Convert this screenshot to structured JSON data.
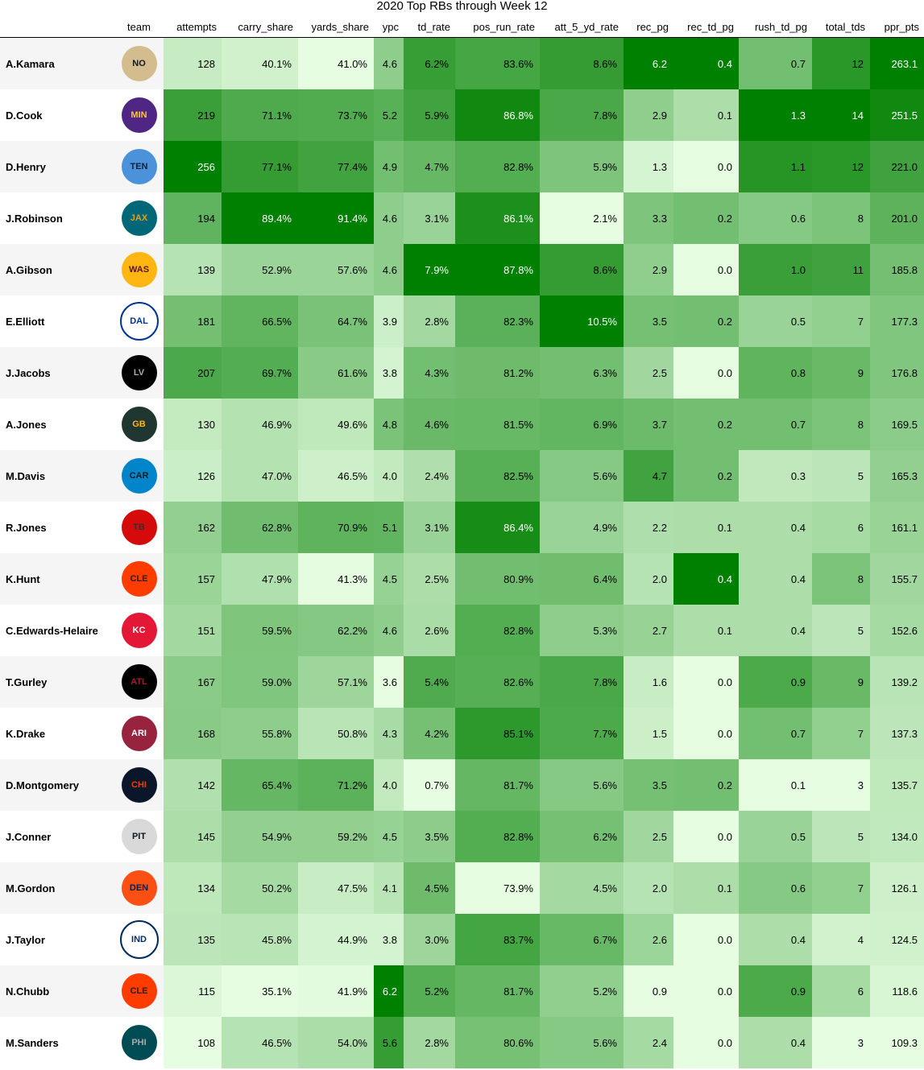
{
  "chart_data": {
    "type": "table",
    "title": "2020 Top RBs through Week 12",
    "columns": [
      "",
      "team",
      "attempts",
      "carry_share",
      "yards_share",
      "ypc",
      "td_rate",
      "pos_run_rate",
      "att_5_yd_rate",
      "rec_pg",
      "rec_td_pg",
      "rush_td_pg",
      "total_tds",
      "ppr_pts"
    ],
    "rows": [
      {
        "player": "A.Kamara",
        "team": "NO",
        "attempts": "128",
        "carry_share": "40.1%",
        "yards_share": "41.0%",
        "ypc": "4.6",
        "td_rate": "6.2%",
        "pos_run_rate": "83.6%",
        "att_5_yd_rate": "8.6%",
        "rec_pg": "6.2",
        "rec_td_pg": "0.4",
        "rush_td_pg": "0.7",
        "total_tds": "12",
        "ppr_pts": "263.1"
      },
      {
        "player": "D.Cook",
        "team": "MIN",
        "attempts": "219",
        "carry_share": "71.1%",
        "yards_share": "73.7%",
        "ypc": "5.2",
        "td_rate": "5.9%",
        "pos_run_rate": "86.8%",
        "att_5_yd_rate": "7.8%",
        "rec_pg": "2.9",
        "rec_td_pg": "0.1",
        "rush_td_pg": "1.3",
        "total_tds": "14",
        "ppr_pts": "251.5"
      },
      {
        "player": "D.Henry",
        "team": "TEN",
        "attempts": "256",
        "carry_share": "77.1%",
        "yards_share": "77.4%",
        "ypc": "4.9",
        "td_rate": "4.7%",
        "pos_run_rate": "82.8%",
        "att_5_yd_rate": "5.9%",
        "rec_pg": "1.3",
        "rec_td_pg": "0.0",
        "rush_td_pg": "1.1",
        "total_tds": "12",
        "ppr_pts": "221.0"
      },
      {
        "player": "J.Robinson",
        "team": "JAX",
        "attempts": "194",
        "carry_share": "89.4%",
        "yards_share": "91.4%",
        "ypc": "4.6",
        "td_rate": "3.1%",
        "pos_run_rate": "86.1%",
        "att_5_yd_rate": "2.1%",
        "rec_pg": "3.3",
        "rec_td_pg": "0.2",
        "rush_td_pg": "0.6",
        "total_tds": "8",
        "ppr_pts": "201.0"
      },
      {
        "player": "A.Gibson",
        "team": "WAS",
        "attempts": "139",
        "carry_share": "52.9%",
        "yards_share": "57.6%",
        "ypc": "4.6",
        "td_rate": "7.9%",
        "pos_run_rate": "87.8%",
        "att_5_yd_rate": "8.6%",
        "rec_pg": "2.9",
        "rec_td_pg": "0.0",
        "rush_td_pg": "1.0",
        "total_tds": "11",
        "ppr_pts": "185.8"
      },
      {
        "player": "E.Elliott",
        "team": "DAL",
        "attempts": "181",
        "carry_share": "66.5%",
        "yards_share": "64.7%",
        "ypc": "3.9",
        "td_rate": "2.8%",
        "pos_run_rate": "82.3%",
        "att_5_yd_rate": "10.5%",
        "rec_pg": "3.5",
        "rec_td_pg": "0.2",
        "rush_td_pg": "0.5",
        "total_tds": "7",
        "ppr_pts": "177.3"
      },
      {
        "player": "J.Jacobs",
        "team": "LV",
        "attempts": "207",
        "carry_share": "69.7%",
        "yards_share": "61.6%",
        "ypc": "3.8",
        "td_rate": "4.3%",
        "pos_run_rate": "81.2%",
        "att_5_yd_rate": "6.3%",
        "rec_pg": "2.5",
        "rec_td_pg": "0.0",
        "rush_td_pg": "0.8",
        "total_tds": "9",
        "ppr_pts": "176.8"
      },
      {
        "player": "A.Jones",
        "team": "GB",
        "attempts": "130",
        "carry_share": "46.9%",
        "yards_share": "49.6%",
        "ypc": "4.8",
        "td_rate": "4.6%",
        "pos_run_rate": "81.5%",
        "att_5_yd_rate": "6.9%",
        "rec_pg": "3.7",
        "rec_td_pg": "0.2",
        "rush_td_pg": "0.7",
        "total_tds": "8",
        "ppr_pts": "169.5"
      },
      {
        "player": "M.Davis",
        "team": "CAR",
        "attempts": "126",
        "carry_share": "47.0%",
        "yards_share": "46.5%",
        "ypc": "4.0",
        "td_rate": "2.4%",
        "pos_run_rate": "82.5%",
        "att_5_yd_rate": "5.6%",
        "rec_pg": "4.7",
        "rec_td_pg": "0.2",
        "rush_td_pg": "0.3",
        "total_tds": "5",
        "ppr_pts": "165.3"
      },
      {
        "player": "R.Jones",
        "team": "TB",
        "attempts": "162",
        "carry_share": "62.8%",
        "yards_share": "70.9%",
        "ypc": "5.1",
        "td_rate": "3.1%",
        "pos_run_rate": "86.4%",
        "att_5_yd_rate": "4.9%",
        "rec_pg": "2.2",
        "rec_td_pg": "0.1",
        "rush_td_pg": "0.4",
        "total_tds": "6",
        "ppr_pts": "161.1"
      },
      {
        "player": "K.Hunt",
        "team": "CLE",
        "attempts": "157",
        "carry_share": "47.9%",
        "yards_share": "41.3%",
        "ypc": "4.5",
        "td_rate": "2.5%",
        "pos_run_rate": "80.9%",
        "att_5_yd_rate": "6.4%",
        "rec_pg": "2.0",
        "rec_td_pg": "0.4",
        "rush_td_pg": "0.4",
        "total_tds": "8",
        "ppr_pts": "155.7"
      },
      {
        "player": "C.Edwards-Helaire",
        "team": "KC",
        "attempts": "151",
        "carry_share": "59.5%",
        "yards_share": "62.2%",
        "ypc": "4.6",
        "td_rate": "2.6%",
        "pos_run_rate": "82.8%",
        "att_5_yd_rate": "5.3%",
        "rec_pg": "2.7",
        "rec_td_pg": "0.1",
        "rush_td_pg": "0.4",
        "total_tds": "5",
        "ppr_pts": "152.6"
      },
      {
        "player": "T.Gurley",
        "team": "ATL",
        "attempts": "167",
        "carry_share": "59.0%",
        "yards_share": "57.1%",
        "ypc": "3.6",
        "td_rate": "5.4%",
        "pos_run_rate": "82.6%",
        "att_5_yd_rate": "7.8%",
        "rec_pg": "1.6",
        "rec_td_pg": "0.0",
        "rush_td_pg": "0.9",
        "total_tds": "9",
        "ppr_pts": "139.2"
      },
      {
        "player": "K.Drake",
        "team": "ARI",
        "attempts": "168",
        "carry_share": "55.8%",
        "yards_share": "50.8%",
        "ypc": "4.3",
        "td_rate": "4.2%",
        "pos_run_rate": "85.1%",
        "att_5_yd_rate": "7.7%",
        "rec_pg": "1.5",
        "rec_td_pg": "0.0",
        "rush_td_pg": "0.7",
        "total_tds": "7",
        "ppr_pts": "137.3"
      },
      {
        "player": "D.Montgomery",
        "team": "CHI",
        "attempts": "142",
        "carry_share": "65.4%",
        "yards_share": "71.2%",
        "ypc": "4.0",
        "td_rate": "0.7%",
        "pos_run_rate": "81.7%",
        "att_5_yd_rate": "5.6%",
        "rec_pg": "3.5",
        "rec_td_pg": "0.2",
        "rush_td_pg": "0.1",
        "total_tds": "3",
        "ppr_pts": "135.7"
      },
      {
        "player": "J.Conner",
        "team": "PIT",
        "attempts": "145",
        "carry_share": "54.9%",
        "yards_share": "59.2%",
        "ypc": "4.5",
        "td_rate": "3.5%",
        "pos_run_rate": "82.8%",
        "att_5_yd_rate": "6.2%",
        "rec_pg": "2.5",
        "rec_td_pg": "0.0",
        "rush_td_pg": "0.5",
        "total_tds": "5",
        "ppr_pts": "134.0"
      },
      {
        "player": "M.Gordon",
        "team": "DEN",
        "attempts": "134",
        "carry_share": "50.2%",
        "yards_share": "47.5%",
        "ypc": "4.1",
        "td_rate": "4.5%",
        "pos_run_rate": "73.9%",
        "att_5_yd_rate": "4.5%",
        "rec_pg": "2.0",
        "rec_td_pg": "0.1",
        "rush_td_pg": "0.6",
        "total_tds": "7",
        "ppr_pts": "126.1"
      },
      {
        "player": "J.Taylor",
        "team": "IND",
        "attempts": "135",
        "carry_share": "45.8%",
        "yards_share": "44.9%",
        "ypc": "3.8",
        "td_rate": "3.0%",
        "pos_run_rate": "83.7%",
        "att_5_yd_rate": "6.7%",
        "rec_pg": "2.6",
        "rec_td_pg": "0.0",
        "rush_td_pg": "0.4",
        "total_tds": "4",
        "ppr_pts": "124.5"
      },
      {
        "player": "N.Chubb",
        "team": "CLE",
        "attempts": "115",
        "carry_share": "35.1%",
        "yards_share": "41.9%",
        "ypc": "6.2",
        "td_rate": "5.2%",
        "pos_run_rate": "81.7%",
        "att_5_yd_rate": "5.2%",
        "rec_pg": "0.9",
        "rec_td_pg": "0.0",
        "rush_td_pg": "0.9",
        "total_tds": "6",
        "ppr_pts": "118.6"
      },
      {
        "player": "M.Sanders",
        "team": "PHI",
        "attempts": "108",
        "carry_share": "46.5%",
        "yards_share": "54.0%",
        "ypc": "5.6",
        "td_rate": "2.8%",
        "pos_run_rate": "80.6%",
        "att_5_yd_rate": "5.6%",
        "rec_pg": "2.4",
        "rec_td_pg": "0.0",
        "rush_td_pg": "0.4",
        "total_tds": "3",
        "ppr_pts": "109.3"
      }
    ],
    "color_scale": {
      "low": "#e6fde2",
      "high": "#008000"
    },
    "team_colors": {
      "NO": {
        "bg": "#d3bc8d",
        "fg": "#101820"
      },
      "MIN": {
        "bg": "#4f2683",
        "fg": "#ffc62f"
      },
      "TEN": {
        "bg": "#4b92db",
        "fg": "#0c2340"
      },
      "JAX": {
        "bg": "#006778",
        "fg": "#d7a22a"
      },
      "WAS": {
        "bg": "#ffb612",
        "fg": "#5a1414"
      },
      "DAL": {
        "bg": "#ffffff",
        "fg": "#003594"
      },
      "LV": {
        "bg": "#000000",
        "fg": "#a5acaf"
      },
      "GB": {
        "bg": "#203731",
        "fg": "#ffb612"
      },
      "CAR": {
        "bg": "#0085ca",
        "fg": "#101820"
      },
      "TB": {
        "bg": "#d50a0a",
        "fg": "#34302b"
      },
      "CLE": {
        "bg": "#ff3c00",
        "fg": "#311d00"
      },
      "KC": {
        "bg": "#e31837",
        "fg": "#ffffff"
      },
      "ATL": {
        "bg": "#000000",
        "fg": "#a71930"
      },
      "ARI": {
        "bg": "#97233f",
        "fg": "#ffffff"
      },
      "CHI": {
        "bg": "#0b162a",
        "fg": "#e64100"
      },
      "PIT": {
        "bg": "#d9d9d9",
        "fg": "#101820"
      },
      "DEN": {
        "bg": "#fb4f14",
        "fg": "#002244"
      },
      "IND": {
        "bg": "#ffffff",
        "fg": "#002c5f"
      },
      "PHI": {
        "bg": "#004c54",
        "fg": "#a5acaf"
      }
    }
  }
}
